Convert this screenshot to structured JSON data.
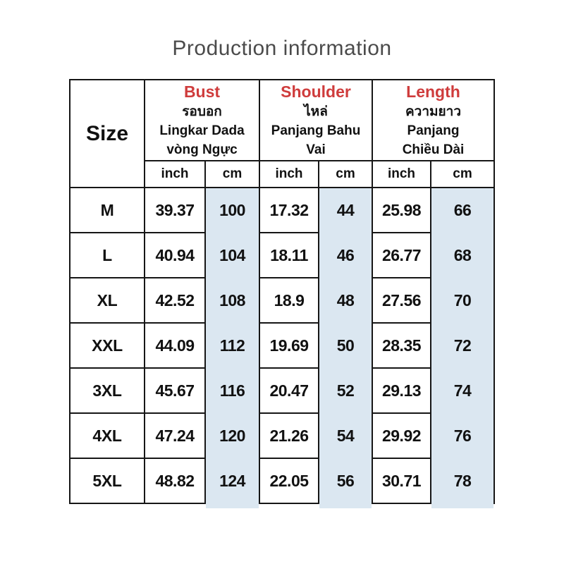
{
  "title": "Production information",
  "colors": {
    "accent_red": "#cf3c3c",
    "highlight_blue": "#dbe7f1",
    "border_black": "#161616",
    "title_gray": "#4b4b4b"
  },
  "table": {
    "size_header": "Size",
    "groups": [
      {
        "name": "Bust",
        "thai": "รอบอก",
        "indonesian": "Lingkar Dada",
        "vietnamese": "vòng Ngực"
      },
      {
        "name": "Shoulder",
        "thai": "ไหล่",
        "indonesian": "Panjang Bahu",
        "vietnamese": "Vai"
      },
      {
        "name": "Length",
        "thai": "ความยาว",
        "indonesian": "Panjang",
        "vietnamese": "Chiều Dài"
      }
    ],
    "unit_headers": [
      "inch",
      "cm",
      "inch",
      "cm",
      "inch",
      "cm"
    ]
  },
  "chart_data": {
    "type": "table",
    "title": "Production information",
    "columns": [
      "Size",
      "Bust inch",
      "Bust cm",
      "Shoulder inch",
      "Shoulder cm",
      "Length inch",
      "Length cm"
    ],
    "rows": [
      {
        "size": "M",
        "values": [
          "39.37",
          "100",
          "17.32",
          "44",
          "25.98",
          "66"
        ]
      },
      {
        "size": "L",
        "values": [
          "40.94",
          "104",
          "18.11",
          "46",
          "26.77",
          "68"
        ]
      },
      {
        "size": "XL",
        "values": [
          "42.52",
          "108",
          "18.9",
          "48",
          "27.56",
          "70"
        ]
      },
      {
        "size": "XXL",
        "values": [
          "44.09",
          "112",
          "19.69",
          "50",
          "28.35",
          "72"
        ]
      },
      {
        "size": "3XL",
        "values": [
          "45.67",
          "116",
          "20.47",
          "52",
          "29.13",
          "74"
        ]
      },
      {
        "size": "4XL",
        "values": [
          "47.24",
          "120",
          "21.26",
          "54",
          "29.92",
          "76"
        ]
      },
      {
        "size": "5XL",
        "values": [
          "48.82",
          "124",
          "22.05",
          "56",
          "30.71",
          "78"
        ]
      }
    ]
  }
}
